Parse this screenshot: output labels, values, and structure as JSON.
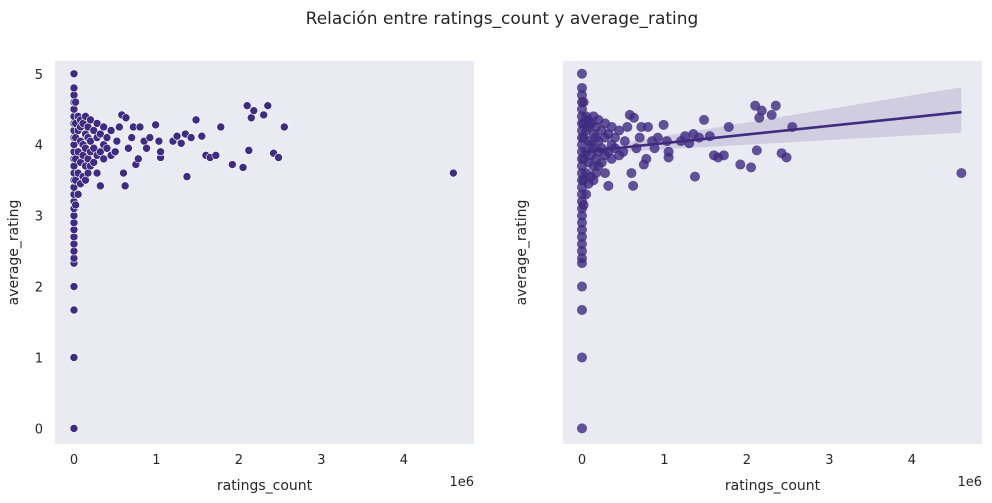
{
  "figure": {
    "title": "Relación entre ratings_count y average_rating",
    "background": "#ffffff",
    "axes_face": "#eaeaf2",
    "point_color": "#3f2b80",
    "line_color": "#3f2b80",
    "ci_color": "#3f2b80"
  },
  "chart_data": [
    {
      "type": "scatter",
      "title": "",
      "xlabel": "ratings_count",
      "ylabel": "average_rating",
      "x_offset_label": "1e6",
      "xlim": [
        -0.23,
        4.85
      ],
      "ylim": [
        -0.22,
        5.18
      ],
      "xticks": [
        0,
        1,
        2,
        3,
        4
      ],
      "xtick_labels": [
        "0",
        "1",
        "2",
        "3",
        "4"
      ],
      "yticks": [
        0,
        1,
        2,
        3,
        4,
        5
      ],
      "ytick_labels": [
        "0",
        "1",
        "2",
        "3",
        "4",
        "5"
      ],
      "grid": false,
      "series": [
        {
          "name": "",
          "x_scale": 1000000,
          "points": [
            [
              0.0,
              0.0
            ],
            [
              0.0,
              1.0
            ],
            [
              0.0,
              1.67
            ],
            [
              0.0,
              2.0
            ],
            [
              0.0,
              2.33
            ],
            [
              0.0,
              2.4
            ],
            [
              0.0,
              2.5
            ],
            [
              0.0,
              2.6
            ],
            [
              0.0,
              2.7
            ],
            [
              0.0,
              2.8
            ],
            [
              0.0,
              2.9
            ],
            [
              0.0,
              3.0
            ],
            [
              0.0,
              3.1
            ],
            [
              0.0,
              3.2
            ],
            [
              0.0,
              3.3
            ],
            [
              0.0,
              3.4
            ],
            [
              0.0,
              3.5
            ],
            [
              0.0,
              3.6
            ],
            [
              0.0,
              3.7
            ],
            [
              0.0,
              3.8
            ],
            [
              0.0,
              3.9
            ],
            [
              0.0,
              4.0
            ],
            [
              0.0,
              4.1
            ],
            [
              0.0,
              4.2
            ],
            [
              0.0,
              4.3
            ],
            [
              0.0,
              4.4
            ],
            [
              0.0,
              4.5
            ],
            [
              0.0,
              4.6
            ],
            [
              0.0,
              4.7
            ],
            [
              0.0,
              4.8
            ],
            [
              0.0,
              5.0
            ],
            [
              0.02,
              3.15
            ],
            [
              0.02,
              3.5
            ],
            [
              0.02,
              3.8
            ],
            [
              0.02,
              4.1
            ],
            [
              0.02,
              4.3
            ],
            [
              0.02,
              4.6
            ],
            [
              0.05,
              3.3
            ],
            [
              0.05,
              3.6
            ],
            [
              0.05,
              3.9
            ],
            [
              0.05,
              4.2
            ],
            [
              0.05,
              4.4
            ],
            [
              0.08,
              3.45
            ],
            [
              0.08,
              3.75
            ],
            [
              0.08,
              4.05
            ],
            [
              0.08,
              4.25
            ],
            [
              0.08,
              4.35
            ],
            [
              0.11,
              3.55
            ],
            [
              0.11,
              3.85
            ],
            [
              0.11,
              4.0
            ],
            [
              0.11,
              4.3
            ],
            [
              0.14,
              3.5
            ],
            [
              0.14,
              3.7
            ],
            [
              0.14,
              3.95
            ],
            [
              0.14,
              4.15
            ],
            [
              0.14,
              4.4
            ],
            [
              0.17,
              3.6
            ],
            [
              0.17,
              3.8
            ],
            [
              0.17,
              4.1
            ],
            [
              0.17,
              4.25
            ],
            [
              0.2,
              3.7
            ],
            [
              0.2,
              3.9
            ],
            [
              0.2,
              4.05
            ],
            [
              0.2,
              4.35
            ],
            [
              0.24,
              3.75
            ],
            [
              0.24,
              3.95
            ],
            [
              0.24,
              4.2
            ],
            [
              0.28,
              3.6
            ],
            [
              0.28,
              3.85
            ],
            [
              0.28,
              4.1
            ],
            [
              0.28,
              4.3
            ],
            [
              0.32,
              3.9
            ],
            [
              0.32,
              4.15
            ],
            [
              0.32,
              3.42
            ],
            [
              0.36,
              3.8
            ],
            [
              0.36,
              4.0
            ],
            [
              0.36,
              4.25
            ],
            [
              0.4,
              3.95
            ],
            [
              0.4,
              4.1
            ],
            [
              0.45,
              3.85
            ],
            [
              0.45,
              4.2
            ],
            [
              0.5,
              3.9
            ],
            [
              0.52,
              4.05
            ],
            [
              0.55,
              4.25
            ],
            [
              0.58,
              4.42
            ],
            [
              0.6,
              3.6
            ],
            [
              0.62,
              3.42
            ],
            [
              0.63,
              4.38
            ],
            [
              0.66,
              3.95
            ],
            [
              0.7,
              4.1
            ],
            [
              0.72,
              4.25
            ],
            [
              0.75,
              3.72
            ],
            [
              0.78,
              3.8
            ],
            [
              0.8,
              4.25
            ],
            [
              0.85,
              4.05
            ],
            [
              0.88,
              3.95
            ],
            [
              0.92,
              4.1
            ],
            [
              0.99,
              4.28
            ],
            [
              1.03,
              4.05
            ],
            [
              1.05,
              3.82
            ],
            [
              1.05,
              3.9
            ],
            [
              1.2,
              4.05
            ],
            [
              1.25,
              4.12
            ],
            [
              1.3,
              4.02
            ],
            [
              1.35,
              4.15
            ],
            [
              1.37,
              3.55
            ],
            [
              1.42,
              4.1
            ],
            [
              1.48,
              4.35
            ],
            [
              1.55,
              4.12
            ],
            [
              1.6,
              3.85
            ],
            [
              1.65,
              3.82
            ],
            [
              1.72,
              3.85
            ],
            [
              1.78,
              4.25
            ],
            [
              1.92,
              3.72
            ],
            [
              2.05,
              3.68
            ],
            [
              2.1,
              4.55
            ],
            [
              2.12,
              3.92
            ],
            [
              2.15,
              4.38
            ],
            [
              2.18,
              4.48
            ],
            [
              2.3,
              4.42
            ],
            [
              2.35,
              4.55
            ],
            [
              2.42,
              3.88
            ],
            [
              2.48,
              3.82
            ],
            [
              2.55,
              4.25
            ],
            [
              4.6,
              3.6
            ]
          ]
        }
      ],
      "regression": null
    },
    {
      "type": "scatter",
      "title": "",
      "xlabel": "ratings_count",
      "ylabel": "average_rating",
      "x_offset_label": "1e6",
      "xlim": [
        -0.23,
        4.85
      ],
      "ylim": [
        -0.22,
        5.18
      ],
      "xticks": [
        0,
        1,
        2,
        3,
        4
      ],
      "xtick_labels": [
        "0",
        "1",
        "2",
        "3",
        "4"
      ],
      "yticks": [
        0,
        1,
        2,
        3,
        4,
        5
      ],
      "ytick_labels": [],
      "grid": false,
      "series": [
        {
          "name": "",
          "x_scale": 1000000,
          "points": [
            [
              0.0,
              0.0
            ],
            [
              0.0,
              1.0
            ],
            [
              0.0,
              1.67
            ],
            [
              0.0,
              2.0
            ],
            [
              0.0,
              2.33
            ],
            [
              0.0,
              2.4
            ],
            [
              0.0,
              2.5
            ],
            [
              0.0,
              2.6
            ],
            [
              0.0,
              2.7
            ],
            [
              0.0,
              2.8
            ],
            [
              0.0,
              2.9
            ],
            [
              0.0,
              3.0
            ],
            [
              0.0,
              3.1
            ],
            [
              0.0,
              3.2
            ],
            [
              0.0,
              3.3
            ],
            [
              0.0,
              3.4
            ],
            [
              0.0,
              3.5
            ],
            [
              0.0,
              3.6
            ],
            [
              0.0,
              3.7
            ],
            [
              0.0,
              3.8
            ],
            [
              0.0,
              3.9
            ],
            [
              0.0,
              4.0
            ],
            [
              0.0,
              4.1
            ],
            [
              0.0,
              4.2
            ],
            [
              0.0,
              4.3
            ],
            [
              0.0,
              4.4
            ],
            [
              0.0,
              4.5
            ],
            [
              0.0,
              4.6
            ],
            [
              0.0,
              4.7
            ],
            [
              0.0,
              4.8
            ],
            [
              0.0,
              5.0
            ],
            [
              0.02,
              3.15
            ],
            [
              0.02,
              3.5
            ],
            [
              0.02,
              3.8
            ],
            [
              0.02,
              4.1
            ],
            [
              0.02,
              4.3
            ],
            [
              0.02,
              4.6
            ],
            [
              0.05,
              3.3
            ],
            [
              0.05,
              3.6
            ],
            [
              0.05,
              3.9
            ],
            [
              0.05,
              4.2
            ],
            [
              0.05,
              4.4
            ],
            [
              0.08,
              3.45
            ],
            [
              0.08,
              3.75
            ],
            [
              0.08,
              4.05
            ],
            [
              0.08,
              4.25
            ],
            [
              0.08,
              4.35
            ],
            [
              0.11,
              3.55
            ],
            [
              0.11,
              3.85
            ],
            [
              0.11,
              4.0
            ],
            [
              0.11,
              4.3
            ],
            [
              0.14,
              3.5
            ],
            [
              0.14,
              3.7
            ],
            [
              0.14,
              3.95
            ],
            [
              0.14,
              4.15
            ],
            [
              0.14,
              4.4
            ],
            [
              0.17,
              3.6
            ],
            [
              0.17,
              3.8
            ],
            [
              0.17,
              4.1
            ],
            [
              0.17,
              4.25
            ],
            [
              0.2,
              3.7
            ],
            [
              0.2,
              3.9
            ],
            [
              0.2,
              4.05
            ],
            [
              0.2,
              4.35
            ],
            [
              0.24,
              3.75
            ],
            [
              0.24,
              3.95
            ],
            [
              0.24,
              4.2
            ],
            [
              0.28,
              3.6
            ],
            [
              0.28,
              3.85
            ],
            [
              0.28,
              4.1
            ],
            [
              0.28,
              4.3
            ],
            [
              0.32,
              3.9
            ],
            [
              0.32,
              4.15
            ],
            [
              0.32,
              3.42
            ],
            [
              0.36,
              3.8
            ],
            [
              0.36,
              4.0
            ],
            [
              0.36,
              4.25
            ],
            [
              0.4,
              3.95
            ],
            [
              0.4,
              4.1
            ],
            [
              0.45,
              3.85
            ],
            [
              0.45,
              4.2
            ],
            [
              0.5,
              3.9
            ],
            [
              0.52,
              4.05
            ],
            [
              0.55,
              4.25
            ],
            [
              0.58,
              4.42
            ],
            [
              0.6,
              3.6
            ],
            [
              0.62,
              3.42
            ],
            [
              0.63,
              4.38
            ],
            [
              0.66,
              3.95
            ],
            [
              0.7,
              4.1
            ],
            [
              0.72,
              4.25
            ],
            [
              0.75,
              3.72
            ],
            [
              0.78,
              3.8
            ],
            [
              0.8,
              4.25
            ],
            [
              0.85,
              4.05
            ],
            [
              0.88,
              3.95
            ],
            [
              0.92,
              4.1
            ],
            [
              0.99,
              4.28
            ],
            [
              1.03,
              4.05
            ],
            [
              1.05,
              3.82
            ],
            [
              1.05,
              3.9
            ],
            [
              1.2,
              4.05
            ],
            [
              1.25,
              4.12
            ],
            [
              1.3,
              4.02
            ],
            [
              1.35,
              4.15
            ],
            [
              1.37,
              3.55
            ],
            [
              1.42,
              4.1
            ],
            [
              1.48,
              4.35
            ],
            [
              1.55,
              4.12
            ],
            [
              1.6,
              3.85
            ],
            [
              1.65,
              3.82
            ],
            [
              1.72,
              3.85
            ],
            [
              1.78,
              4.25
            ],
            [
              1.92,
              3.72
            ],
            [
              2.05,
              3.68
            ],
            [
              2.1,
              4.55
            ],
            [
              2.12,
              3.92
            ],
            [
              2.15,
              4.38
            ],
            [
              2.18,
              4.48
            ],
            [
              2.3,
              4.42
            ],
            [
              2.35,
              4.55
            ],
            [
              2.42,
              3.88
            ],
            [
              2.48,
              3.82
            ],
            [
              2.55,
              4.25
            ],
            [
              4.6,
              3.6
            ]
          ]
        }
      ],
      "regression": {
        "x": [
          0.0,
          4.6
        ],
        "y": [
          3.9,
          4.46
        ],
        "ci_upper": [
          3.93,
          4.81
        ],
        "ci_lower": [
          3.87,
          4.17
        ]
      }
    }
  ]
}
